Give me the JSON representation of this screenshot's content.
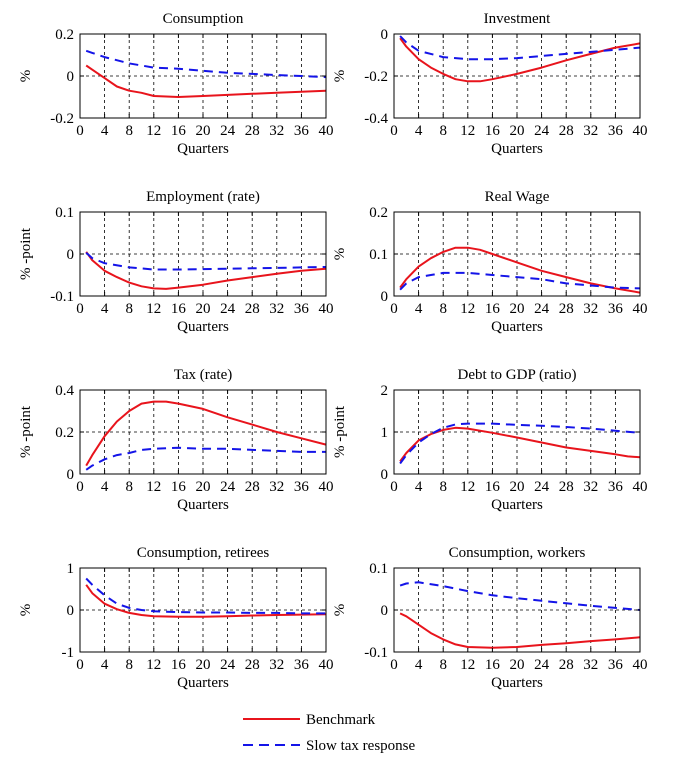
{
  "chart_data": [
    {
      "type": "line",
      "title": "Consumption",
      "xlabel": "Quarters",
      "ylabel": "%",
      "xlim": [
        0,
        40
      ],
      "ylim": [
        -0.2,
        0.2
      ],
      "xticks": [
        0,
        4,
        8,
        12,
        16,
        20,
        24,
        28,
        32,
        36,
        40
      ],
      "yticks": [
        -0.2,
        0,
        0.2
      ],
      "ytick_labels": [
        "-0.2",
        "0",
        "0.2"
      ],
      "grid": true,
      "series": [
        {
          "name": "Benchmark",
          "style": "solid",
          "color": "#e8141c",
          "x": [
            1,
            2,
            4,
            6,
            8,
            10,
            12,
            16,
            20,
            24,
            28,
            32,
            36,
            40
          ],
          "y": [
            0.05,
            0.03,
            -0.01,
            -0.05,
            -0.07,
            -0.08,
            -0.095,
            -0.1,
            -0.095,
            -0.09,
            -0.085,
            -0.08,
            -0.075,
            -0.07
          ]
        },
        {
          "name": "Slow tax response",
          "style": "dashed",
          "color": "#1414e8",
          "x": [
            1,
            2,
            4,
            8,
            12,
            16,
            20,
            24,
            28,
            32,
            36,
            40
          ],
          "y": [
            0.12,
            0.11,
            0.09,
            0.06,
            0.04,
            0.035,
            0.025,
            0.015,
            0.01,
            0.005,
            0.0,
            -0.005
          ]
        }
      ]
    },
    {
      "type": "line",
      "title": "Investment",
      "xlabel": "Quarters",
      "ylabel": "%",
      "xlim": [
        0,
        40
      ],
      "ylim": [
        -0.4,
        0
      ],
      "xticks": [
        0,
        4,
        8,
        12,
        16,
        20,
        24,
        28,
        32,
        36,
        40
      ],
      "yticks": [
        -0.4,
        -0.2,
        0
      ],
      "ytick_labels": [
        "-0.4",
        "-0.2",
        "0"
      ],
      "grid": true,
      "series": [
        {
          "name": "Benchmark",
          "style": "solid",
          "color": "#e8141c",
          "x": [
            1,
            2,
            4,
            6,
            8,
            10,
            12,
            14,
            16,
            20,
            24,
            28,
            32,
            36,
            40
          ],
          "y": [
            -0.02,
            -0.06,
            -0.12,
            -0.16,
            -0.19,
            -0.215,
            -0.225,
            -0.225,
            -0.215,
            -0.19,
            -0.16,
            -0.125,
            -0.095,
            -0.065,
            -0.045
          ]
        },
        {
          "name": "Slow tax response",
          "style": "dashed",
          "color": "#1414e8",
          "x": [
            1,
            2,
            4,
            8,
            12,
            16,
            20,
            24,
            28,
            32,
            36,
            40
          ],
          "y": [
            -0.01,
            -0.04,
            -0.08,
            -0.11,
            -0.12,
            -0.12,
            -0.115,
            -0.105,
            -0.095,
            -0.085,
            -0.075,
            -0.065
          ]
        }
      ]
    },
    {
      "type": "line",
      "title": "Employment (rate)",
      "xlabel": "Quarters",
      "ylabel": "% -point",
      "xlim": [
        0,
        40
      ],
      "ylim": [
        -0.1,
        0.1
      ],
      "xticks": [
        0,
        4,
        8,
        12,
        16,
        20,
        24,
        28,
        32,
        36,
        40
      ],
      "yticks": [
        -0.1,
        0,
        0.1
      ],
      "ytick_labels": [
        "-0.1",
        "0",
        "0.1"
      ],
      "grid": true,
      "series": [
        {
          "name": "Benchmark",
          "style": "solid",
          "color": "#e8141c",
          "x": [
            1,
            2,
            4,
            6,
            8,
            10,
            12,
            14,
            16,
            20,
            24,
            28,
            32,
            36,
            40
          ],
          "y": [
            0.005,
            -0.015,
            -0.04,
            -0.055,
            -0.068,
            -0.077,
            -0.082,
            -0.083,
            -0.08,
            -0.073,
            -0.063,
            -0.055,
            -0.047,
            -0.04,
            -0.035
          ]
        },
        {
          "name": "Slow tax response",
          "style": "dashed",
          "color": "#1414e8",
          "x": [
            1,
            2,
            4,
            8,
            12,
            16,
            20,
            24,
            28,
            32,
            36,
            40
          ],
          "y": [
            0.003,
            -0.01,
            -0.022,
            -0.032,
            -0.037,
            -0.037,
            -0.036,
            -0.035,
            -0.034,
            -0.033,
            -0.032,
            -0.031
          ]
        }
      ]
    },
    {
      "type": "line",
      "title": "Real Wage",
      "xlabel": "Quarters",
      "ylabel": "%",
      "xlim": [
        0,
        40
      ],
      "ylim": [
        0,
        0.2
      ],
      "xticks": [
        0,
        4,
        8,
        12,
        16,
        20,
        24,
        28,
        32,
        36,
        40
      ],
      "yticks": [
        0,
        0.1,
        0.2
      ],
      "ytick_labels": [
        "0",
        "0.1",
        "0.2"
      ],
      "grid": true,
      "series": [
        {
          "name": "Benchmark",
          "style": "solid",
          "color": "#e8141c",
          "x": [
            1,
            2,
            4,
            6,
            8,
            10,
            12,
            14,
            16,
            20,
            24,
            28,
            32,
            36,
            40
          ],
          "y": [
            0.02,
            0.04,
            0.07,
            0.09,
            0.105,
            0.115,
            0.115,
            0.11,
            0.1,
            0.08,
            0.06,
            0.045,
            0.03,
            0.018,
            0.008
          ]
        },
        {
          "name": "Slow tax response",
          "style": "dashed",
          "color": "#1414e8",
          "x": [
            1,
            2,
            4,
            6,
            8,
            12,
            16,
            20,
            24,
            28,
            32,
            36,
            40
          ],
          "y": [
            0.015,
            0.03,
            0.045,
            0.05,
            0.055,
            0.055,
            0.05,
            0.045,
            0.04,
            0.03,
            0.025,
            0.02,
            0.018
          ]
        }
      ]
    },
    {
      "type": "line",
      "title": "Tax (rate)",
      "xlabel": "Quarters",
      "ylabel": "% -point",
      "xlim": [
        0,
        40
      ],
      "ylim": [
        0,
        0.4
      ],
      "xticks": [
        0,
        4,
        8,
        12,
        16,
        20,
        24,
        28,
        32,
        36,
        40
      ],
      "yticks": [
        0,
        0.2,
        0.4
      ],
      "ytick_labels": [
        "0",
        "0.2",
        "0.4"
      ],
      "grid": true,
      "series": [
        {
          "name": "Benchmark",
          "style": "solid",
          "color": "#e8141c",
          "x": [
            1,
            2,
            4,
            6,
            8,
            10,
            12,
            14,
            16,
            20,
            24,
            28,
            32,
            36,
            40
          ],
          "y": [
            0.04,
            0.09,
            0.18,
            0.25,
            0.3,
            0.335,
            0.345,
            0.345,
            0.335,
            0.31,
            0.27,
            0.235,
            0.2,
            0.17,
            0.14
          ]
        },
        {
          "name": "Slow tax response",
          "style": "dashed",
          "color": "#1414e8",
          "x": [
            1,
            2,
            4,
            6,
            8,
            10,
            12,
            16,
            20,
            24,
            28,
            32,
            36,
            40
          ],
          "y": [
            0.02,
            0.04,
            0.07,
            0.09,
            0.1,
            0.115,
            0.12,
            0.125,
            0.12,
            0.12,
            0.115,
            0.11,
            0.105,
            0.105
          ]
        }
      ]
    },
    {
      "type": "line",
      "title": "Debt to GDP (ratio)",
      "xlabel": "Quarters",
      "ylabel": "% -point",
      "xlim": [
        0,
        40
      ],
      "ylim": [
        0,
        2
      ],
      "xticks": [
        0,
        4,
        8,
        12,
        16,
        20,
        24,
        28,
        32,
        36,
        40
      ],
      "yticks": [
        0,
        1,
        2
      ],
      "ytick_labels": [
        "0",
        "1",
        "2"
      ],
      "grid": true,
      "series": [
        {
          "name": "Benchmark",
          "style": "solid",
          "color": "#e8141c",
          "x": [
            1,
            2,
            4,
            6,
            8,
            10,
            12,
            16,
            20,
            24,
            28,
            32,
            36,
            38,
            40
          ],
          "y": [
            0.3,
            0.5,
            0.8,
            0.95,
            1.05,
            1.1,
            1.08,
            0.98,
            0.87,
            0.75,
            0.63,
            0.55,
            0.47,
            0.42,
            0.4
          ]
        },
        {
          "name": "Slow tax response",
          "style": "dashed",
          "color": "#1414e8",
          "x": [
            1,
            2,
            4,
            6,
            8,
            10,
            12,
            16,
            20,
            24,
            28,
            32,
            36,
            40
          ],
          "y": [
            0.25,
            0.45,
            0.75,
            0.95,
            1.1,
            1.18,
            1.2,
            1.2,
            1.17,
            1.15,
            1.12,
            1.08,
            1.03,
            0.98
          ]
        }
      ]
    },
    {
      "type": "line",
      "title": "Consumption, retirees",
      "xlabel": "Quarters",
      "ylabel": "%",
      "xlim": [
        0,
        40
      ],
      "ylim": [
        -1,
        1
      ],
      "xticks": [
        0,
        4,
        8,
        12,
        16,
        20,
        24,
        28,
        32,
        36,
        40
      ],
      "yticks": [
        -1,
        0,
        1
      ],
      "ytick_labels": [
        "-1",
        "0",
        "1"
      ],
      "grid": true,
      "series": [
        {
          "name": "Benchmark",
          "style": "solid",
          "color": "#e8141c",
          "x": [
            1,
            2,
            4,
            6,
            8,
            10,
            12,
            16,
            20,
            24,
            28,
            32,
            36,
            40
          ],
          "y": [
            0.6,
            0.4,
            0.15,
            0.02,
            -0.07,
            -0.12,
            -0.15,
            -0.16,
            -0.16,
            -0.15,
            -0.13,
            -0.12,
            -0.11,
            -0.1
          ]
        },
        {
          "name": "Slow tax response",
          "style": "dashed",
          "color": "#1414e8",
          "x": [
            1,
            2,
            4,
            6,
            8,
            10,
            12,
            16,
            20,
            24,
            28,
            32,
            36,
            40
          ],
          "y": [
            0.75,
            0.6,
            0.35,
            0.15,
            0.05,
            0.0,
            -0.03,
            -0.05,
            -0.06,
            -0.06,
            -0.07,
            -0.07,
            -0.08,
            -0.08
          ]
        }
      ]
    },
    {
      "type": "line",
      "title": "Consumption, workers",
      "xlabel": "Quarters",
      "ylabel": "%",
      "xlim": [
        0,
        40
      ],
      "ylim": [
        -0.1,
        0.1
      ],
      "xticks": [
        0,
        4,
        8,
        12,
        16,
        20,
        24,
        28,
        32,
        36,
        40
      ],
      "yticks": [
        -0.1,
        0,
        0.1
      ],
      "ytick_labels": [
        "-0.1",
        "0",
        "0.1"
      ],
      "grid": true,
      "series": [
        {
          "name": "Benchmark",
          "style": "solid",
          "color": "#e8141c",
          "x": [
            1,
            2,
            4,
            6,
            8,
            10,
            12,
            16,
            20,
            24,
            28,
            32,
            36,
            40
          ],
          "y": [
            -0.008,
            -0.015,
            -0.035,
            -0.055,
            -0.07,
            -0.082,
            -0.088,
            -0.09,
            -0.088,
            -0.083,
            -0.079,
            -0.074,
            -0.07,
            -0.065
          ]
        },
        {
          "name": "Slow tax response",
          "style": "dashed",
          "color": "#1414e8",
          "x": [
            1,
            2,
            4,
            8,
            12,
            16,
            20,
            24,
            28,
            32,
            36,
            40
          ],
          "y": [
            0.058,
            0.063,
            0.066,
            0.057,
            0.045,
            0.035,
            0.028,
            0.022,
            0.016,
            0.01,
            0.005,
            0.0
          ]
        }
      ]
    }
  ],
  "legend": {
    "position": "bottom-center",
    "entries": [
      {
        "label": "Benchmark",
        "color": "#e8141c",
        "style": "solid"
      },
      {
        "label": "Slow tax response",
        "color": "#1414e8",
        "style": "dashed"
      }
    ]
  }
}
